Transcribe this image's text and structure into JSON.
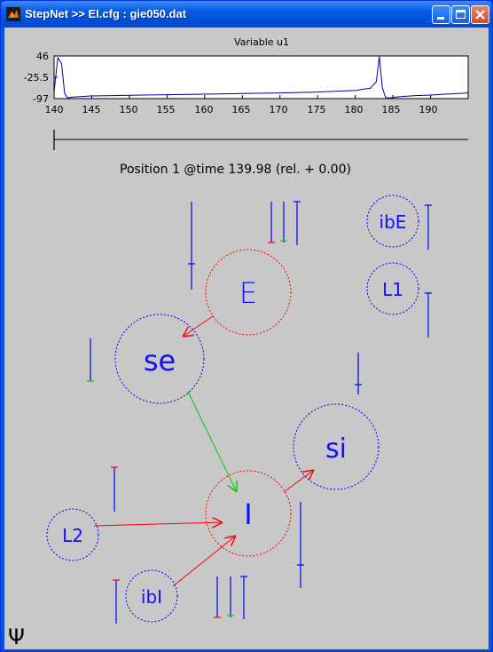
{
  "window": {
    "title": "StepNet >> EI.cfg : gie050.dat",
    "icon_name": "matlab-icon",
    "controls": [
      "minimize",
      "maximize",
      "close"
    ]
  },
  "plot": {
    "title": "Variable u1",
    "y_ticks": [
      "46",
      "-25.5",
      "-97"
    ],
    "x_ticks": [
      "140",
      "145",
      "150",
      "155",
      "160",
      "165",
      "170",
      "175",
      "180",
      "185",
      "190"
    ],
    "line_color": "#0000a0"
  },
  "chart_data": {
    "type": "line",
    "title": "Variable u1",
    "xlabel": "",
    "ylabel": "",
    "xlim": [
      140,
      195
    ],
    "ylim": [
      -97,
      46
    ],
    "x_ticks": [
      140,
      145,
      150,
      155,
      160,
      165,
      170,
      175,
      180,
      185,
      190
    ],
    "y_ticks": [
      -97,
      -25.5,
      46
    ],
    "series": [
      {
        "name": "u1",
        "x": [
          140,
          140.5,
          141,
          141.4,
          141.8,
          142.5,
          145,
          150,
          155,
          160,
          165,
          170,
          175,
          180,
          182,
          182.8,
          183.2,
          183.6,
          184,
          184.5,
          186,
          188,
          190,
          192,
          195
        ],
        "y": [
          -75,
          40,
          20,
          -80,
          -95,
          -92,
          -88,
          -86,
          -84,
          -82,
          -80,
          -78,
          -75,
          -70,
          -62,
          -40,
          44,
          -60,
          -92,
          -95,
          -90,
          -87,
          -85,
          -82,
          -78
        ]
      }
    ]
  },
  "slider": {
    "label": "time-slider"
  },
  "status": {
    "text": "Position 1 @time 139.98 (rel. + 0.00)"
  },
  "network": {
    "nodes": [
      {
        "id": "E",
        "label": "E",
        "color": "#ff0000"
      },
      {
        "id": "se",
        "label": "se",
        "color": "#0000ff"
      },
      {
        "id": "I",
        "label": "I",
        "color": "#ff0000"
      },
      {
        "id": "si",
        "label": "si",
        "color": "#0000ff"
      },
      {
        "id": "L2",
        "label": "L2",
        "color": "#0000ff"
      },
      {
        "id": "ibI",
        "label": "ibI",
        "color": "#0000ff"
      },
      {
        "id": "ibE",
        "label": "ibE",
        "color": "#0000ff"
      },
      {
        "id": "L1",
        "label": "L1",
        "color": "#0000ff"
      }
    ],
    "edges": [
      {
        "from": "E",
        "to": "se",
        "color": "#ff0000"
      },
      {
        "from": "se",
        "to": "I",
        "color": "#00cc00"
      },
      {
        "from": "I",
        "to": "si",
        "color": "#ff0000"
      },
      {
        "from": "L2",
        "to": "I",
        "color": "#ff0000"
      },
      {
        "from": "ibI",
        "to": "I",
        "color": "#ff0000"
      }
    ]
  },
  "footer": {
    "symbol": "Ψ"
  }
}
